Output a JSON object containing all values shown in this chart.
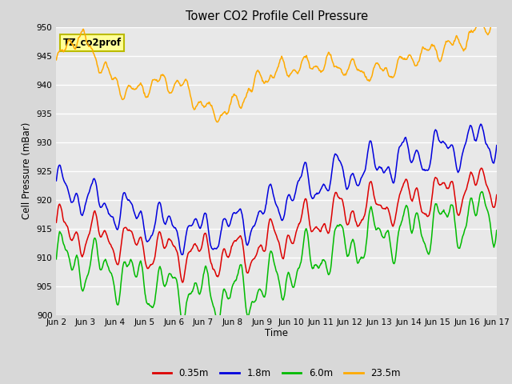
{
  "title": "Tower CO2 Profile Cell Pressure",
  "xlabel": "Time",
  "ylabel": "Cell Pressure (mBar)",
  "ylim": [
    900,
    950
  ],
  "yticks": [
    900,
    905,
    910,
    915,
    920,
    925,
    930,
    935,
    940,
    945,
    950
  ],
  "fig_bg_color": "#d8d8d8",
  "plot_bg_color": "#e8e8e8",
  "grid_color": "#ffffff",
  "label_box_text": "TZ_co2prof",
  "label_box_facecolor": "#ffff99",
  "label_box_edgecolor": "#bbbb00",
  "series": [
    {
      "label": "0.35m",
      "color": "#dd0000"
    },
    {
      "label": "1.8m",
      "color": "#0000dd"
    },
    {
      "label": "6.0m",
      "color": "#00bb00"
    },
    {
      "label": "23.5m",
      "color": "#ffaa00"
    }
  ],
  "xtick_labels": [
    "Jun 2",
    "Jun 3",
    "Jun 4",
    "Jun 5",
    "Jun 6",
    "Jun 7",
    "Jun 8",
    "Jun 9",
    "Jun 10",
    "Jun 11",
    "Jun 12",
    "Jun 13",
    "Jun 14",
    "Jun 15",
    "Jun 16",
    "Jun 17"
  ]
}
